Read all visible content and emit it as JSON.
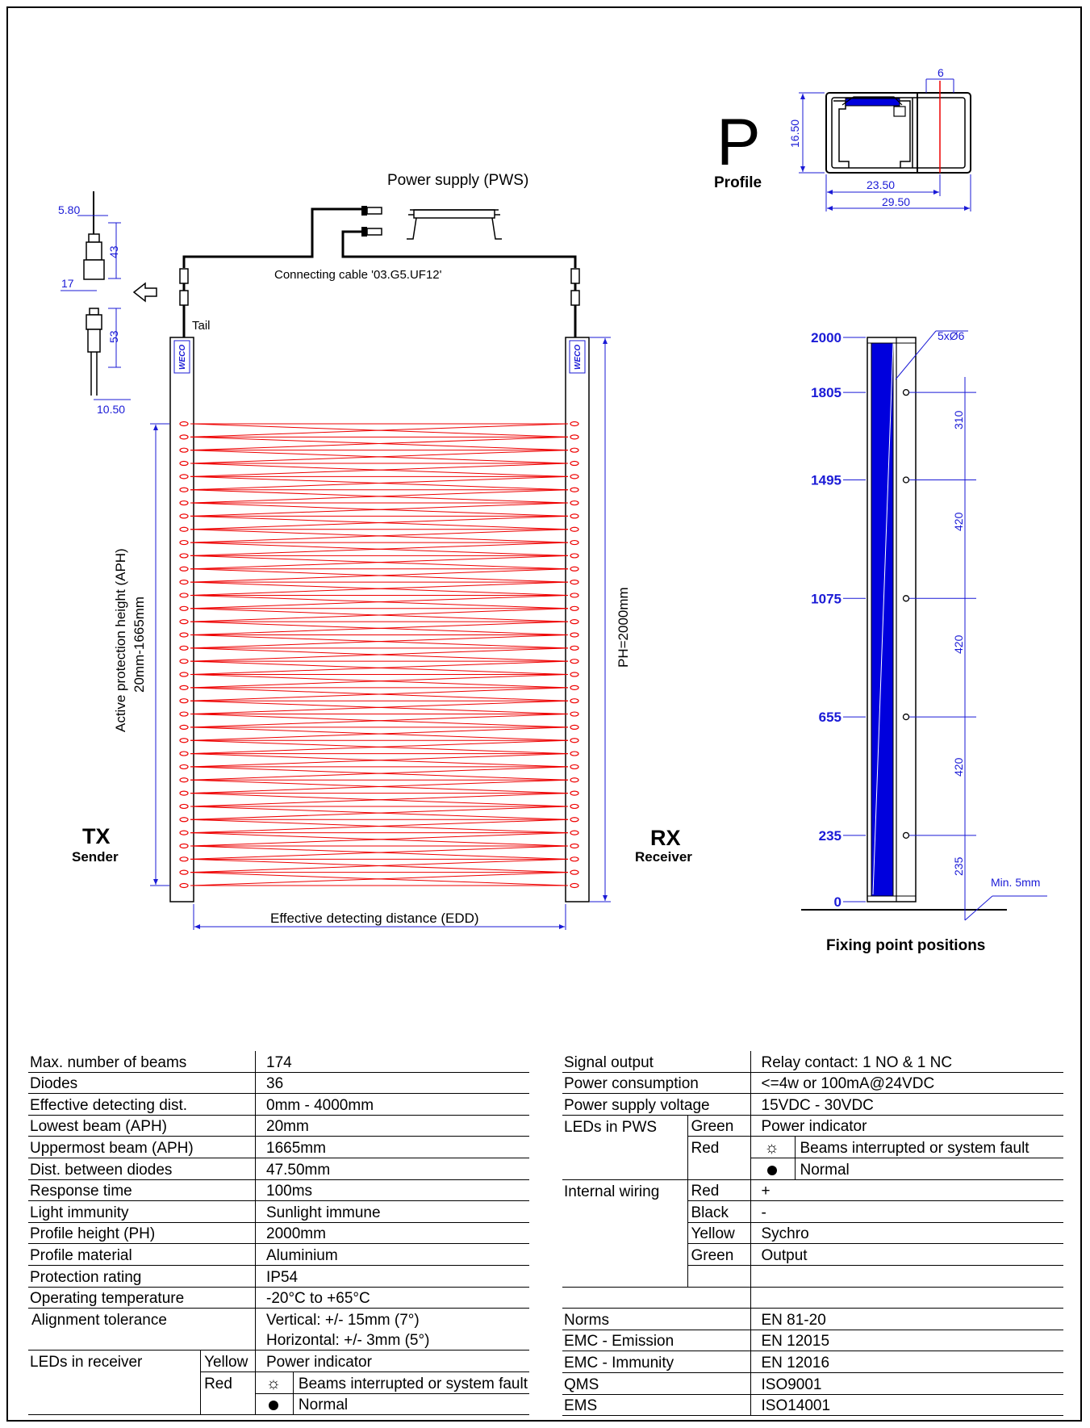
{
  "drawing": {
    "power_supply": "Power supply (PWS)",
    "connecting_cable": "Connecting cable '03.G5.UF12'",
    "tail": "Tail",
    "brand": "WECO",
    "tx": {
      "code": "TX",
      "label": "Sender"
    },
    "rx": {
      "code": "RX",
      "label": "Receiver"
    },
    "aph_label_1": "Active protection height (APH)",
    "aph_label_2": "20mm-1665mm",
    "ph_label": "PH=2000mm",
    "edd_label": "Effective detecting distance (EDD)",
    "connector_dims": [
      "5.80",
      "43",
      "17",
      "53",
      "10.50"
    ],
    "profile": {
      "letter": "P",
      "label": "Profile",
      "dims": [
        "6",
        "16.50",
        "23.50",
        "29.50"
      ]
    },
    "fixing": {
      "title": "Fixing point positions",
      "heights": [
        "2000",
        "1805",
        "1495",
        "1075",
        "655",
        "235",
        "0"
      ],
      "holes": "5xØ6",
      "spacings": [
        "310",
        "420",
        "420",
        "420",
        "235"
      ],
      "min_gap": "Min. 5mm"
    },
    "colors": {
      "beam": "#ee0000",
      "dimension": "#1a1ad6",
      "profile_fill": "#0000dd"
    }
  },
  "specs_left": {
    "rows": [
      {
        "label": "Max. number of beams",
        "value": "174"
      },
      {
        "label": "Diodes",
        "value": "36"
      },
      {
        "label": "Effective detecting dist.",
        "value": "0mm - 4000mm"
      },
      {
        "label": "Lowest beam (APH)",
        "value": "20mm"
      },
      {
        "label": "Uppermost beam (APH)",
        "value": "1665mm"
      },
      {
        "label": "Dist. between diodes",
        "value": "47.50mm"
      },
      {
        "label": "Response time",
        "value": "100ms"
      },
      {
        "label": "Light immunity",
        "value": "Sunlight immune"
      },
      {
        "label": "Profile height (PH)",
        "value": "2000mm"
      },
      {
        "label": "Profile material",
        "value": "Aluminium"
      },
      {
        "label": "Protection rating",
        "value": "IP54"
      },
      {
        "label": "Operating temperature",
        "value": "-20°C to +65°C"
      }
    ],
    "alignment": {
      "label": "Alignment tolerance",
      "vertical": "Vertical: +/- 15mm (7°)",
      "horizontal": "Horizontal: +/- 3mm (5°)"
    },
    "leds_receiver": {
      "label": "LEDs in receiver",
      "yellow": "Yellow",
      "yellow_value": "Power indicator",
      "red": "Red",
      "red_blink": "Beams interrupted or system fault",
      "red_steady": "Normal"
    }
  },
  "specs_right": {
    "rows_top": [
      {
        "label": "Signal output",
        "value": "Relay contact: 1 NO & 1 NC"
      },
      {
        "label": "Power consumption",
        "value": "<=4w or 100mA@24VDC"
      },
      {
        "label": "Power supply voltage",
        "value": "15VDC - 30VDC"
      }
    ],
    "leds_pws": {
      "label": "LEDs in PWS",
      "green": "Green",
      "green_value": "Power indicator",
      "red": "Red",
      "red_blink": "Beams interrupted or system fault",
      "red_steady": "Normal"
    },
    "wiring": {
      "label": "Internal wiring",
      "items": [
        {
          "color": "Red",
          "value": "+"
        },
        {
          "color": "Black",
          "value": "-"
        },
        {
          "color": "Yellow",
          "value": "Sychro"
        },
        {
          "color": "Green",
          "value": "Output"
        }
      ]
    },
    "norms": [
      {
        "label": "Norms",
        "value": "EN 81-20"
      },
      {
        "label": "EMC - Emission",
        "value": "EN 12015"
      },
      {
        "label": "EMC - Immunity",
        "value": "EN 12016"
      },
      {
        "label": "QMS",
        "value": "ISO9001"
      },
      {
        "label": "EMS",
        "value": "ISO14001"
      }
    ]
  }
}
